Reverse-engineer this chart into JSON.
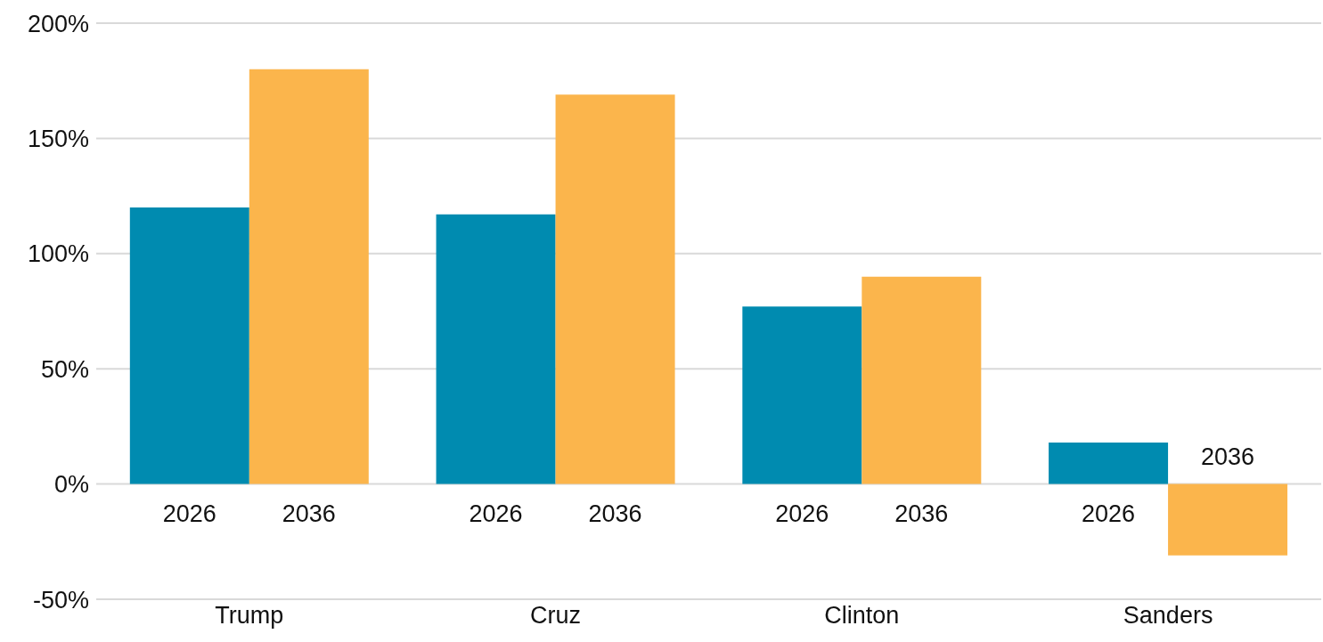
{
  "chart_data": {
    "type": "bar",
    "categories": [
      "Trump",
      "Cruz",
      "Clinton",
      "Sanders"
    ],
    "series": [
      {
        "name": "2026",
        "color": "#008bb0",
        "values": [
          120,
          117,
          77,
          18
        ]
      },
      {
        "name": "2036",
        "color": "#fbb54c",
        "values": [
          180,
          169,
          90,
          -31
        ]
      }
    ],
    "ylim": [
      -50,
      200
    ],
    "yticks": [
      {
        "value": -50,
        "label": "-50%"
      },
      {
        "value": 0,
        "label": "0%"
      },
      {
        "value": 50,
        "label": "50%"
      },
      {
        "value": 100,
        "label": "100%"
      },
      {
        "value": 150,
        "label": "150%"
      },
      {
        "value": 200,
        "label": "200%"
      }
    ],
    "grid": "y",
    "legend": false
  }
}
